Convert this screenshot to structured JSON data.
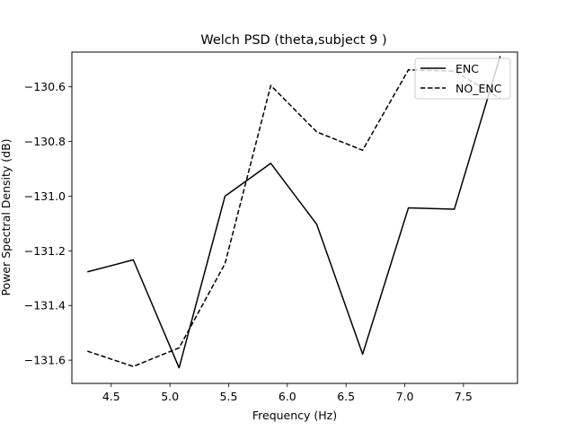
{
  "chart_data": {
    "type": "line",
    "title": "Welch PSD (theta,subject 9 )",
    "xlabel": "Frequency (Hz)",
    "ylabel": "Power Spectral Density (dB)",
    "xlim": [
      4.165,
      7.96
    ],
    "ylim": [
      -131.685,
      -130.473
    ],
    "xticks": [
      4.5,
      5.0,
      5.5,
      6.0,
      6.5,
      7.0,
      7.5
    ],
    "xtick_labels": [
      "4.5",
      "5.0",
      "5.5",
      "6.0",
      "6.5",
      "7.0",
      "7.5"
    ],
    "yticks": [
      -131.6,
      -131.4,
      -131.2,
      -131.0,
      -130.8,
      -130.6
    ],
    "ytick_labels": [
      "−131.6",
      "−131.4",
      "−131.2",
      "−131.0",
      "−130.8",
      "−130.6"
    ],
    "x": [
      4.297,
      4.688,
      5.078,
      5.469,
      5.859,
      6.25,
      6.641,
      7.031,
      7.422,
      7.813
    ],
    "series": [
      {
        "name": "ENC",
        "style": "solid",
        "color": "#000000",
        "values": [
          -131.277,
          -131.233,
          -131.628,
          -131.0,
          -130.88,
          -131.103,
          -131.578,
          -131.043,
          -131.048,
          -130.488
        ]
      },
      {
        "name": "NO_ENC",
        "style": "dashed",
        "color": "#000000",
        "values": [
          -131.567,
          -131.623,
          -131.555,
          -131.247,
          -130.595,
          -130.765,
          -130.832,
          -130.538,
          -130.543,
          -130.643
        ]
      }
    ],
    "grid": false,
    "legend": "top-right"
  }
}
